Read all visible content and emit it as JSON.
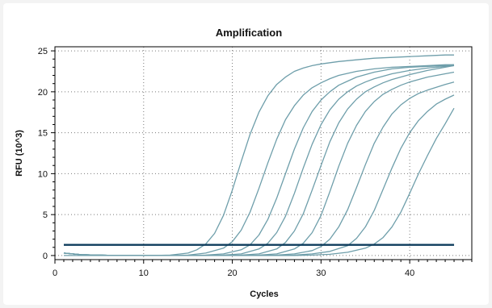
{
  "chart_data": {
    "type": "line",
    "title": "Amplification",
    "xlabel": "Cycles",
    "ylabel": "RFU (10^3)",
    "xlim": [
      0,
      47
    ],
    "ylim": [
      -0.5,
      25.5
    ],
    "xticks": [
      0,
      10,
      20,
      30,
      40
    ],
    "yticks": [
      0,
      5,
      10,
      15,
      20,
      25
    ],
    "grid": true,
    "threshold": 1.3,
    "series": [
      {
        "x": [
          1,
          3,
          5,
          7,
          9,
          11,
          13,
          15,
          16,
          17,
          18,
          19,
          20,
          21,
          22,
          23,
          24,
          25,
          26,
          27,
          28,
          29,
          30,
          32,
          34,
          36,
          38,
          40,
          42,
          44,
          45
        ],
        "values": [
          0.3,
          0.1,
          0.05,
          0,
          0,
          0,
          0.05,
          0.3,
          0.7,
          1.4,
          2.7,
          4.9,
          8,
          11.5,
          14.8,
          17.5,
          19.5,
          20.9,
          21.8,
          22.5,
          22.9,
          23.2,
          23.4,
          23.7,
          23.9,
          24.1,
          24.2,
          24.3,
          24.4,
          24.5,
          24.5
        ]
      },
      {
        "x": [
          1,
          3,
          5,
          7,
          9,
          11,
          13,
          15,
          17,
          19,
          20,
          21,
          22,
          23,
          24,
          25,
          26,
          27,
          28,
          29,
          30,
          31,
          32,
          34,
          36,
          38,
          40,
          42,
          44,
          45
        ],
        "values": [
          0.3,
          0.1,
          0.05,
          0,
          0,
          0,
          0,
          0.05,
          0.3,
          0.9,
          1.7,
          3.1,
          5.3,
          8.2,
          11.3,
          14.2,
          16.6,
          18.3,
          19.6,
          20.5,
          21.1,
          21.6,
          22,
          22.5,
          22.8,
          23,
          23.1,
          23.2,
          23.3,
          23.3
        ]
      },
      {
        "x": [
          1,
          3,
          5,
          7,
          9,
          11,
          13,
          15,
          17,
          19,
          21,
          22,
          23,
          24,
          25,
          26,
          27,
          28,
          29,
          30,
          31,
          32,
          33,
          34,
          36,
          38,
          40,
          42,
          44,
          45
        ],
        "values": [
          0.3,
          0.1,
          0.05,
          0,
          0,
          0,
          0,
          0,
          0.05,
          0.2,
          0.7,
          1.3,
          2.5,
          4.4,
          7,
          10,
          13,
          15.6,
          17.6,
          19,
          20,
          20.8,
          21.3,
          21.8,
          22.4,
          22.8,
          23,
          23.1,
          23.2,
          23.3
        ]
      },
      {
        "x": [
          1,
          3,
          5,
          7,
          9,
          11,
          13,
          15,
          17,
          19,
          21,
          23,
          24,
          25,
          26,
          27,
          28,
          29,
          30,
          31,
          32,
          33,
          34,
          35,
          36,
          38,
          40,
          42,
          44,
          45
        ],
        "values": [
          0.3,
          0.1,
          0.05,
          0,
          0,
          0,
          0,
          0,
          0,
          0.05,
          0.2,
          0.8,
          1.5,
          2.8,
          4.8,
          7.6,
          10.7,
          13.6,
          16,
          17.8,
          19.1,
          20,
          20.7,
          21.2,
          21.6,
          22.2,
          22.6,
          22.9,
          23.1,
          23.2
        ]
      },
      {
        "x": [
          1,
          3,
          5,
          7,
          9,
          11,
          13,
          15,
          17,
          19,
          21,
          23,
          25,
          26,
          27,
          28,
          29,
          30,
          31,
          32,
          33,
          34,
          35,
          36,
          37,
          38,
          40,
          42,
          44,
          45
        ],
        "values": [
          0.3,
          0.1,
          0.05,
          0,
          0,
          0,
          0,
          0,
          0,
          0,
          0.05,
          0.2,
          0.8,
          1.6,
          3,
          5.1,
          8,
          11,
          13.9,
          16.2,
          17.9,
          19.1,
          20,
          20.6,
          21.1,
          21.5,
          22.1,
          22.6,
          23,
          23.2
        ]
      },
      {
        "x": [
          1,
          3,
          5,
          7,
          9,
          11,
          13,
          15,
          17,
          19,
          21,
          23,
          25,
          27,
          28,
          29,
          30,
          31,
          32,
          33,
          34,
          35,
          36,
          37,
          38,
          39,
          40,
          42,
          44,
          45
        ],
        "values": [
          0.3,
          0.1,
          0.05,
          0,
          0,
          0,
          0,
          0,
          0,
          0,
          0,
          0.05,
          0.2,
          0.8,
          1.5,
          2.8,
          4.9,
          7.8,
          10.9,
          13.7,
          15.9,
          17.6,
          18.8,
          19.7,
          20.3,
          20.8,
          21.2,
          21.8,
          22.2,
          22.4
        ]
      },
      {
        "x": [
          1,
          3,
          5,
          7,
          9,
          11,
          13,
          15,
          17,
          19,
          21,
          23,
          25,
          27,
          29,
          30,
          31,
          32,
          33,
          34,
          35,
          36,
          37,
          38,
          39,
          40,
          41,
          42,
          44,
          45
        ],
        "values": [
          0.3,
          0.1,
          0.05,
          0,
          0,
          0,
          0,
          0,
          0,
          0,
          0,
          0,
          0.05,
          0.2,
          0.6,
          1.1,
          2,
          3.5,
          5.6,
          8.3,
          11.1,
          13.7,
          15.7,
          17.3,
          18.4,
          19.2,
          19.8,
          20.2,
          20.9,
          21.2
        ]
      },
      {
        "x": [
          1,
          3,
          5,
          7,
          9,
          11,
          13,
          15,
          17,
          19,
          21,
          23,
          25,
          27,
          29,
          31,
          33,
          34,
          35,
          36,
          37,
          38,
          39,
          40,
          41,
          42,
          43,
          44,
          45
        ],
        "values": [
          0.3,
          0.1,
          0.05,
          0,
          0,
          0,
          0,
          0,
          0,
          0,
          0,
          0,
          0,
          0.05,
          0.2,
          0.5,
          1.2,
          2.1,
          3.5,
          5.5,
          8.1,
          10.7,
          13.1,
          15,
          16.5,
          17.6,
          18.5,
          19.1,
          19.6
        ]
      },
      {
        "x": [
          1,
          3,
          5,
          7,
          9,
          11,
          13,
          15,
          17,
          19,
          21,
          23,
          25,
          27,
          29,
          31,
          33,
          35,
          36,
          37,
          38,
          39,
          40,
          41,
          42,
          43,
          44,
          45
        ],
        "values": [
          0,
          0,
          0,
          0,
          0,
          0,
          0,
          0,
          0,
          0,
          0,
          0,
          0,
          0,
          0.05,
          0.15,
          0.4,
          0.9,
          1.4,
          2.2,
          3.5,
          5.3,
          7.6,
          10,
          12.2,
          14.3,
          16.1,
          18
        ]
      }
    ],
    "colors": {
      "curve": "#6e9eaa",
      "threshold": "#0e3c5c",
      "axis": "#000000",
      "grid": "#7a7a7a"
    }
  }
}
